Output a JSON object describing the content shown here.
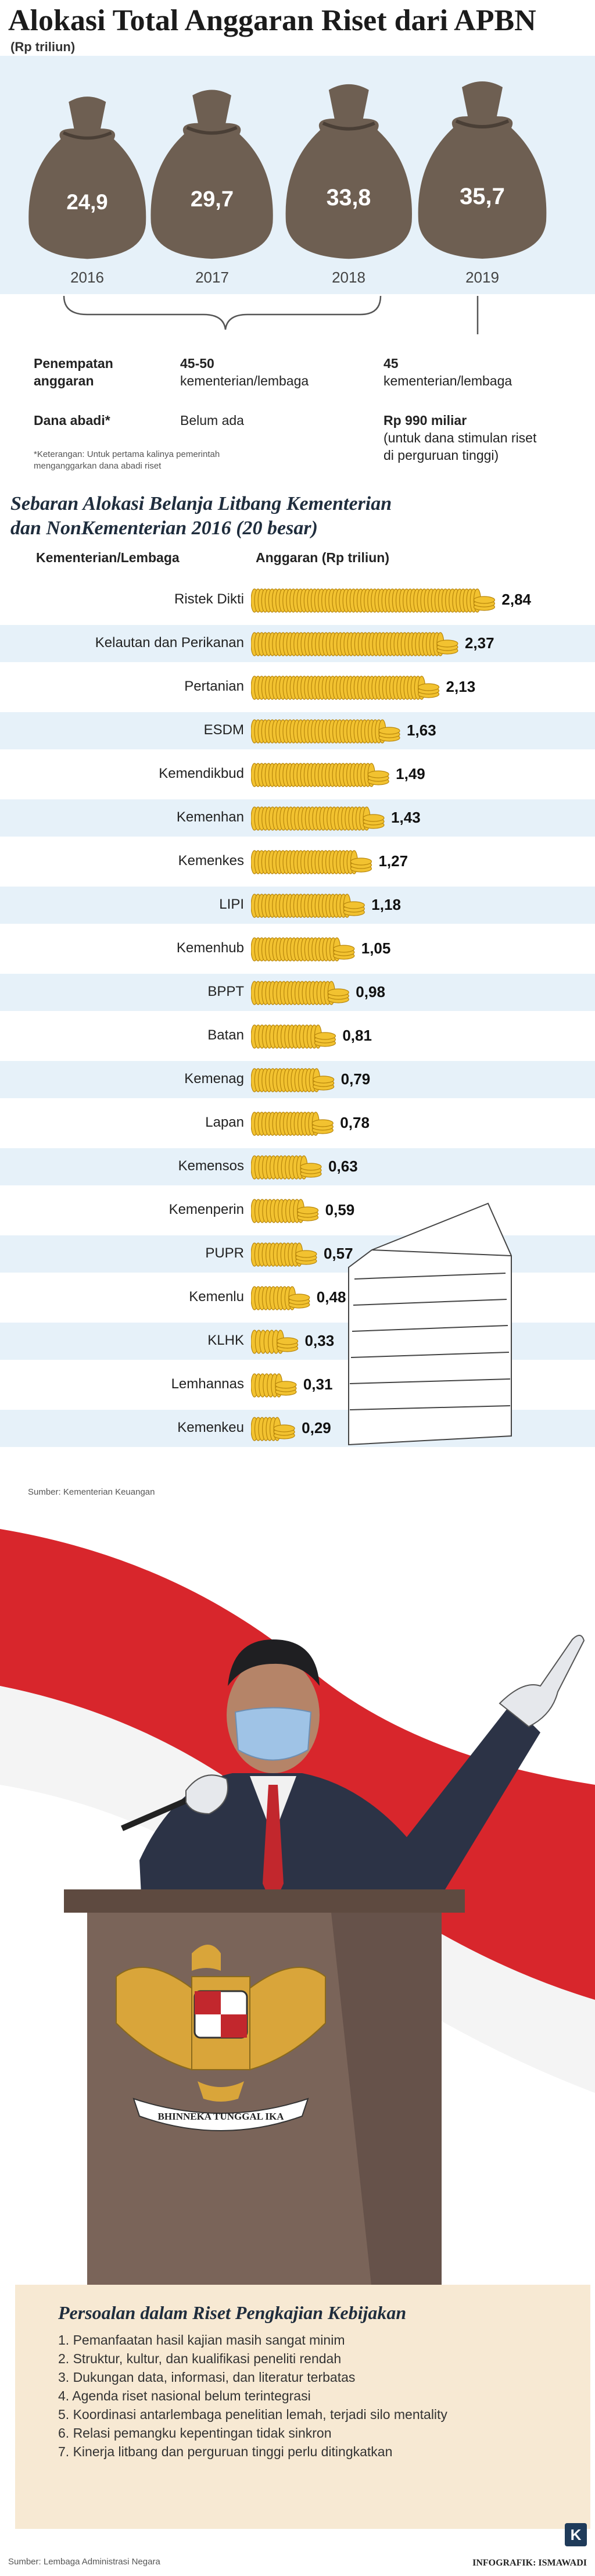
{
  "header": {
    "title": "Alokasi Total Anggaran Riset dari APBN",
    "subtitle": "(Rp triliun)"
  },
  "chart_data": [
    {
      "type": "bar",
      "categories": [
        "2016",
        "2017",
        "2018",
        "2019"
      ],
      "values": [
        24.9,
        29.7,
        33.8,
        35.7
      ],
      "value_labels": [
        "24,9",
        "29,7",
        "33,8",
        "35,7"
      ],
      "title": "Alokasi Total Anggaran Riset dari APBN",
      "subtitle": "(Rp triliun)"
    },
    {
      "type": "bar",
      "orientation": "horizontal",
      "title": "Sebaran Alokasi Belanja Litbang Kementerian dan NonKementerian 2016 (20 besar)",
      "category_header": "Kementerian/Lembaga",
      "value_header": "Anggaran (Rp triliun)",
      "categories": [
        "Ristek Dikti",
        "Kelautan dan Perikanan",
        "Pertanian",
        "ESDM",
        "Kemendikbud",
        "Kemenhan",
        "Kemenkes",
        "LIPI",
        "Kemenhub",
        "BPPT",
        "Batan",
        "Kemenag",
        "Lapan",
        "Kemensos",
        "Kemenperin",
        "PUPR",
        "Kemenlu",
        "KLHK",
        "Lemhannas",
        "Kemenkeu"
      ],
      "values": [
        2.84,
        2.37,
        2.13,
        1.63,
        1.49,
        1.43,
        1.27,
        1.18,
        1.05,
        0.98,
        0.81,
        0.79,
        0.78,
        0.63,
        0.59,
        0.57,
        0.48,
        0.33,
        0.31,
        0.29
      ],
      "value_labels": [
        "2,84",
        "2,37",
        "2,13",
        "1,63",
        "1,49",
        "1,43",
        "1,27",
        "1,18",
        "1,05",
        "0,98",
        "0,81",
        "0,79",
        "0,78",
        "0,63",
        "0,59",
        "0,57",
        "0,48",
        "0,33",
        "0,31",
        "0,29"
      ]
    }
  ],
  "allocation": {
    "row1_label_a": "Penempatan",
    "row1_label_b": "anggaran",
    "row1_mid_a": "45-50",
    "row1_mid_b": "kementerian/lembaga",
    "row1_right_a": "45",
    "row1_right_b": "kementerian/lembaga",
    "row2_label": "Dana abadi*",
    "row2_mid": "Belum ada",
    "row2_right_a": "Rp 990 miliar",
    "row2_right_b": "(untuk dana stimulan riset",
    "row2_right_c": "di perguruan tinggi)",
    "note_a": "*Keterangan: Untuk pertama kalinya pemerintah",
    "note_b": "menganggarkan dana abadi riset"
  },
  "section2": {
    "title_a": "Sebaran Alokasi Belanja Litbang Kementerian",
    "title_b": "dan NonKementerian 2016 (20 besar)",
    "source": "Sumber: Kementerian Keuangan"
  },
  "issues": {
    "title": "Persoalan dalam Riset Pengkajian Kebijakan",
    "items": [
      "1. Pemanfaatan hasil kajian masih sangat minim",
      "2. Struktur, kultur, dan kualifikasi peneliti rendah",
      "3. Dukungan data, informasi, dan literatur terbatas",
      "4. Agenda riset nasional belum terintegrasi",
      "5. Koordinasi antarlembaga penelitian lemah, terjadi silo mentality",
      "6. Relasi pemangku kepentingan tidak sinkron",
      "7. Kinerja litbang dan perguruan tinggi perlu ditingkatkan"
    ],
    "source": "Sumber: Lembaga Administrasi Negara"
  },
  "seal_text": "BHINNEKA TUNGGAL IKA",
  "credit": "INFOGRAFIK: ISMAWADI",
  "logo": "K",
  "colors": {
    "band_blue": "#e6f1f9",
    "bag_brown": "#6e5f52",
    "coin_gold": "#f2c230",
    "coin_edge": "#b8860b",
    "issues_bg": "#f7e9d3",
    "flag_red": "#d8262c",
    "suit": "#2c3346",
    "podium": "#7a6459"
  }
}
